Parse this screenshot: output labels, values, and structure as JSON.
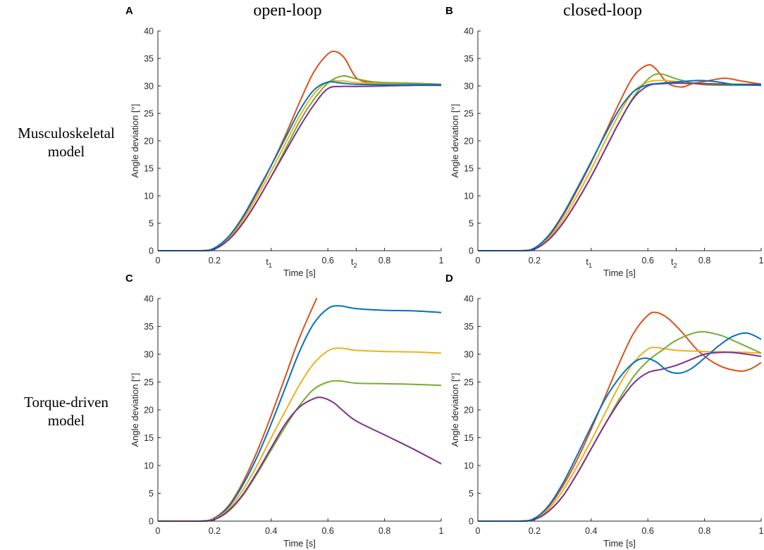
{
  "figure": {
    "col_titles": [
      "open-loop",
      "closed-loop"
    ],
    "row_titles": [
      [
        "Musculoskeletal",
        "model"
      ],
      [
        "Torque-driven",
        "model"
      ]
    ]
  },
  "series_colors": [
    "#0072BD",
    "#D95319",
    "#EDB120",
    "#7E2F8E",
    "#77AC30"
  ],
  "chart_data": [
    {
      "panel": "A",
      "type": "line",
      "xlabel": "Time [s]",
      "ylabel": "Angle deviation [°]",
      "xlim": [
        0,
        1
      ],
      "ylim": [
        0,
        40
      ],
      "xticks": [
        "0",
        "0.2",
        "0.6",
        "0.8",
        "1"
      ],
      "xtick_values": [
        0,
        0.2,
        0.6,
        0.8,
        1
      ],
      "yticks": [
        0,
        5,
        10,
        15,
        20,
        25,
        30,
        35,
        40
      ],
      "annotations": [
        {
          "label": "t",
          "sub": "1",
          "x": 0.4
        },
        {
          "label": "t",
          "sub": "2",
          "x": 0.7
        }
      ],
      "series": [
        {
          "name": "red",
          "color": "#D95319",
          "x": [
            0,
            0.15,
            0.2,
            0.25,
            0.3,
            0.35,
            0.4,
            0.45,
            0.5,
            0.55,
            0.6,
            0.63,
            0.66,
            0.7,
            0.75,
            0.8,
            0.9,
            1
          ],
          "y": [
            0,
            0,
            0.5,
            2.5,
            6,
            10.5,
            15.5,
            21,
            27,
            32.5,
            35.8,
            36.2,
            35,
            31.5,
            30.6,
            30.4,
            30.3,
            30.2
          ]
        },
        {
          "name": "yellow",
          "color": "#EDB120",
          "x": [
            0,
            0.15,
            0.2,
            0.25,
            0.3,
            0.35,
            0.4,
            0.45,
            0.5,
            0.55,
            0.6,
            0.65,
            0.7,
            0.8,
            0.9,
            1
          ],
          "y": [
            0,
            0,
            0.4,
            2.2,
            5.5,
            9.8,
            14.5,
            19.5,
            24.5,
            28.5,
            30.7,
            30.9,
            30.6,
            30.4,
            30.3,
            30.2
          ]
        },
        {
          "name": "green",
          "color": "#77AC30",
          "x": [
            0,
            0.15,
            0.2,
            0.25,
            0.3,
            0.35,
            0.4,
            0.45,
            0.5,
            0.55,
            0.6,
            0.65,
            0.7,
            0.75,
            0.8,
            0.9,
            1
          ],
          "y": [
            0,
            0,
            0.3,
            2,
            5,
            9,
            13.5,
            18.5,
            23.5,
            27.5,
            30.5,
            31.8,
            31.3,
            30.8,
            30.6,
            30.5,
            30.3
          ]
        },
        {
          "name": "purple",
          "color": "#7E2F8E",
          "x": [
            0,
            0.15,
            0.2,
            0.25,
            0.3,
            0.35,
            0.4,
            0.45,
            0.5,
            0.55,
            0.6,
            0.65,
            0.7,
            0.8,
            0.9,
            1
          ],
          "y": [
            0,
            0,
            0.3,
            2,
            5,
            9,
            13.5,
            18,
            22.5,
            26.5,
            29.5,
            29.9,
            29.9,
            30,
            30.1,
            30.1
          ]
        },
        {
          "name": "blue",
          "color": "#0072BD",
          "x": [
            0,
            0.15,
            0.2,
            0.25,
            0.3,
            0.35,
            0.4,
            0.45,
            0.5,
            0.55,
            0.6,
            0.65,
            0.7,
            0.8,
            0.9,
            1
          ],
          "y": [
            0,
            0,
            0.5,
            2.6,
            6.2,
            10.8,
            15.5,
            20.5,
            25.5,
            29.2,
            30.7,
            30.5,
            30.3,
            30.2,
            30.2,
            30.2
          ]
        }
      ]
    },
    {
      "panel": "B",
      "type": "line",
      "xlabel": "Time [s]",
      "ylabel": "Angle deviation [°]",
      "xlim": [
        0,
        1
      ],
      "ylim": [
        0,
        40
      ],
      "xticks": [
        "0",
        "0.2",
        "0.6",
        "0.8",
        "1"
      ],
      "xtick_values": [
        0,
        0.2,
        0.6,
        0.8,
        1
      ],
      "yticks": [
        0,
        5,
        10,
        15,
        20,
        25,
        30,
        35,
        40
      ],
      "annotations": [
        {
          "label": "t",
          "sub": "1",
          "x": 0.4
        },
        {
          "label": "t",
          "sub": "2",
          "x": 0.7
        }
      ],
      "series": [
        {
          "name": "red",
          "color": "#D95319",
          "x": [
            0,
            0.15,
            0.2,
            0.25,
            0.3,
            0.35,
            0.4,
            0.45,
            0.5,
            0.55,
            0.6,
            0.63,
            0.67,
            0.72,
            0.76,
            0.8,
            0.87,
            0.93,
            1
          ],
          "y": [
            0,
            0,
            0.5,
            2.6,
            6.3,
            11,
            16,
            21.5,
            27,
            31.8,
            33.8,
            33,
            30.5,
            29.8,
            30.5,
            30.8,
            31.4,
            30.9,
            30.3
          ]
        },
        {
          "name": "yellow",
          "color": "#EDB120",
          "x": [
            0,
            0.15,
            0.2,
            0.25,
            0.3,
            0.35,
            0.4,
            0.45,
            0.5,
            0.55,
            0.6,
            0.65,
            0.7,
            0.8,
            0.9,
            1
          ],
          "y": [
            0,
            0,
            0.4,
            2.3,
            5.6,
            10,
            14.8,
            20,
            25,
            29,
            30.7,
            31,
            30.8,
            30.4,
            30.3,
            30.2
          ]
        },
        {
          "name": "green",
          "color": "#77AC30",
          "x": [
            0,
            0.15,
            0.2,
            0.25,
            0.3,
            0.35,
            0.4,
            0.45,
            0.5,
            0.55,
            0.6,
            0.64,
            0.7,
            0.75,
            0.8,
            0.9,
            1
          ],
          "y": [
            0,
            0,
            0.3,
            2,
            5,
            9,
            13.5,
            18.5,
            23.5,
            28,
            31.2,
            32.2,
            31.3,
            30.6,
            30.2,
            30.1,
            30.2
          ]
        },
        {
          "name": "purple",
          "color": "#7E2F8E",
          "x": [
            0,
            0.15,
            0.2,
            0.25,
            0.3,
            0.35,
            0.4,
            0.45,
            0.5,
            0.55,
            0.6,
            0.65,
            0.7,
            0.8,
            0.9,
            1
          ],
          "y": [
            0,
            0,
            0.3,
            2,
            5,
            9,
            13.5,
            18.5,
            23.5,
            27.8,
            30,
            30.4,
            30.5,
            30.4,
            30.3,
            30.3
          ]
        },
        {
          "name": "blue",
          "color": "#0072BD",
          "x": [
            0,
            0.15,
            0.2,
            0.25,
            0.3,
            0.35,
            0.4,
            0.45,
            0.5,
            0.55,
            0.6,
            0.65,
            0.7,
            0.78,
            0.85,
            0.9,
            1
          ],
          "y": [
            0,
            0,
            0.5,
            2.8,
            6.6,
            11.3,
            16.2,
            21.2,
            25.8,
            29,
            30.2,
            30.5,
            30.7,
            31,
            30.7,
            30.3,
            30.1
          ]
        }
      ]
    },
    {
      "panel": "C",
      "type": "line",
      "xlabel": "Time [s]",
      "ylabel": "Angle deviation [°]",
      "xlim": [
        0,
        1
      ],
      "ylim": [
        0,
        40
      ],
      "xticks": [
        "0",
        "0.2",
        "0.4",
        "0.6",
        "0.8",
        "1"
      ],
      "xtick_values": [
        0,
        0.2,
        0.4,
        0.6,
        0.8,
        1
      ],
      "yticks": [
        0,
        5,
        10,
        15,
        20,
        25,
        30,
        35,
        40
      ],
      "series": [
        {
          "name": "red",
          "color": "#D95319",
          "x": [
            0,
            0.15,
            0.2,
            0.25,
            0.3,
            0.35,
            0.4,
            0.45,
            0.5,
            0.56
          ],
          "y": [
            0,
            0,
            0.6,
            2.8,
            7,
            12.5,
            19,
            26,
            33,
            40
          ]
        },
        {
          "name": "blue",
          "color": "#0072BD",
          "x": [
            0,
            0.15,
            0.2,
            0.25,
            0.3,
            0.35,
            0.4,
            0.45,
            0.5,
            0.55,
            0.6,
            0.64,
            0.7,
            0.8,
            0.9,
            1
          ],
          "y": [
            0,
            0,
            0.5,
            2.6,
            6.5,
            11.5,
            17.5,
            24,
            30.5,
            35.5,
            38.2,
            38.7,
            38.2,
            37.9,
            37.8,
            37.5
          ]
        },
        {
          "name": "yellow",
          "color": "#EDB120",
          "x": [
            0,
            0.15,
            0.2,
            0.25,
            0.3,
            0.35,
            0.4,
            0.45,
            0.5,
            0.55,
            0.6,
            0.64,
            0.7,
            0.8,
            0.9,
            1
          ],
          "y": [
            0,
            0,
            0.4,
            2.2,
            5.6,
            10,
            15,
            19.8,
            24.5,
            28.3,
            30.6,
            31.1,
            30.7,
            30.5,
            30.4,
            30.2
          ]
        },
        {
          "name": "green",
          "color": "#77AC30",
          "x": [
            0,
            0.15,
            0.2,
            0.25,
            0.3,
            0.35,
            0.4,
            0.45,
            0.5,
            0.55,
            0.6,
            0.64,
            0.7,
            0.8,
            0.9,
            1
          ],
          "y": [
            0,
            0,
            0.3,
            1.8,
            4.6,
            8.5,
            12.8,
            17,
            20.8,
            23.7,
            25,
            25.2,
            24.8,
            24.7,
            24.6,
            24.4
          ]
        },
        {
          "name": "purple",
          "color": "#7E2F8E",
          "x": [
            0,
            0.15,
            0.2,
            0.25,
            0.3,
            0.35,
            0.4,
            0.45,
            0.5,
            0.55,
            0.58,
            0.62,
            0.65,
            0.7,
            0.8,
            0.9,
            1
          ],
          "y": [
            0,
            0,
            0.3,
            1.9,
            4.8,
            8.8,
            13.2,
            17.5,
            20.5,
            22,
            22.2,
            21.3,
            20,
            18,
            15.5,
            13,
            10.3
          ]
        }
      ]
    },
    {
      "panel": "D",
      "type": "line",
      "xlabel": "Time [s]",
      "ylabel": "Angle deviation [°]",
      "xlim": [
        0,
        1
      ],
      "ylim": [
        0,
        40
      ],
      "xticks": [
        "0",
        "0.2",
        "0.4",
        "0.6",
        "0.8",
        "1"
      ],
      "xtick_values": [
        0,
        0.2,
        0.4,
        0.6,
        0.8,
        1
      ],
      "yticks": [
        0,
        5,
        10,
        15,
        20,
        25,
        30,
        35,
        40
      ],
      "series": [
        {
          "name": "red",
          "color": "#D95319",
          "x": [
            0,
            0.15,
            0.2,
            0.25,
            0.3,
            0.35,
            0.4,
            0.45,
            0.5,
            0.55,
            0.6,
            0.63,
            0.67,
            0.72,
            0.78,
            0.85,
            0.92,
            0.96,
            1
          ],
          "y": [
            0,
            0,
            0.5,
            2.6,
            6.3,
            11,
            16.5,
            22.5,
            28.5,
            33.8,
            37,
            37.5,
            36.5,
            34,
            30.5,
            28,
            27,
            27.3,
            28.5
          ]
        },
        {
          "name": "yellow",
          "color": "#EDB120",
          "x": [
            0,
            0.15,
            0.2,
            0.25,
            0.3,
            0.35,
            0.4,
            0.45,
            0.5,
            0.55,
            0.6,
            0.63,
            0.7,
            0.8,
            0.9,
            1
          ],
          "y": [
            0,
            0,
            0.4,
            2.2,
            5.5,
            9.8,
            14.5,
            19.5,
            24.5,
            28.5,
            30.9,
            31.2,
            30.7,
            30.5,
            30.4,
            30.2
          ]
        },
        {
          "name": "green",
          "color": "#77AC30",
          "x": [
            0,
            0.15,
            0.2,
            0.25,
            0.3,
            0.35,
            0.4,
            0.45,
            0.5,
            0.55,
            0.6,
            0.65,
            0.7,
            0.78,
            0.85,
            0.9,
            1
          ],
          "y": [
            0,
            0,
            0.3,
            1.8,
            4.5,
            8.5,
            13,
            17.5,
            22,
            26,
            28.8,
            30.7,
            32.5,
            34,
            33.5,
            32.5,
            30.2
          ]
        },
        {
          "name": "purple",
          "color": "#7E2F8E",
          "x": [
            0,
            0.15,
            0.2,
            0.25,
            0.3,
            0.35,
            0.4,
            0.45,
            0.5,
            0.55,
            0.6,
            0.65,
            0.7,
            0.75,
            0.8,
            0.85,
            0.9,
            0.95,
            1
          ],
          "y": [
            0,
            0,
            0.3,
            1.8,
            4.5,
            8.5,
            13,
            17.5,
            21.5,
            24.8,
            26.7,
            27.3,
            28,
            29,
            30,
            30.3,
            30.3,
            30,
            29.6
          ]
        },
        {
          "name": "blue",
          "color": "#0072BD",
          "x": [
            0,
            0.15,
            0.2,
            0.25,
            0.3,
            0.35,
            0.4,
            0.45,
            0.5,
            0.55,
            0.59,
            0.63,
            0.67,
            0.71,
            0.75,
            0.8,
            0.85,
            0.9,
            0.95,
            1
          ],
          "y": [
            0,
            0,
            0.5,
            2.8,
            6.8,
            11.8,
            17,
            22,
            25.8,
            28.5,
            29.3,
            28.6,
            27,
            26.6,
            27.3,
            29.3,
            31.5,
            33.2,
            33.8,
            32.7
          ]
        }
      ]
    }
  ]
}
